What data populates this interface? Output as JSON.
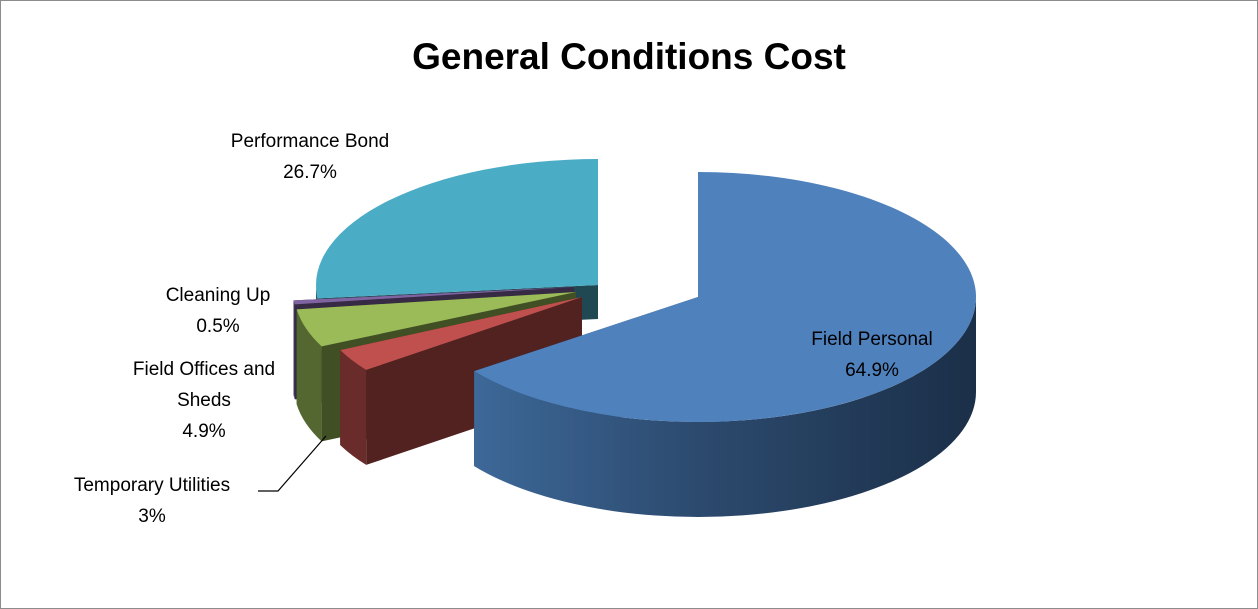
{
  "chart_data": {
    "type": "pie",
    "title": "General Conditions Cost",
    "slices": [
      {
        "label": "Field Personal",
        "label_lines": [
          "Field Personal"
        ],
        "value": 64.9,
        "value_label": "64.9%",
        "color": "#4f81bd"
      },
      {
        "label": "Temporary Utilities",
        "label_lines": [
          "Temporary Utilities"
        ],
        "value": 3.0,
        "value_label": "3%",
        "color": "#c0504d"
      },
      {
        "label": "Field Offices and Sheds",
        "label_lines": [
          "Field Offices and",
          "Sheds"
        ],
        "value": 4.9,
        "value_label": "4.9%",
        "color": "#9bbb59"
      },
      {
        "label": "Cleaning Up",
        "label_lines": [
          "Cleaning Up"
        ],
        "value": 0.5,
        "value_label": "0.5%",
        "color": "#8064a2"
      },
      {
        "label": "Performance Bond",
        "label_lines": [
          "Performance Bond"
        ],
        "value": 26.7,
        "value_label": "26.7%",
        "color": "#4bacc6"
      }
    ],
    "legend": "none",
    "style": "3D exploded pie"
  }
}
